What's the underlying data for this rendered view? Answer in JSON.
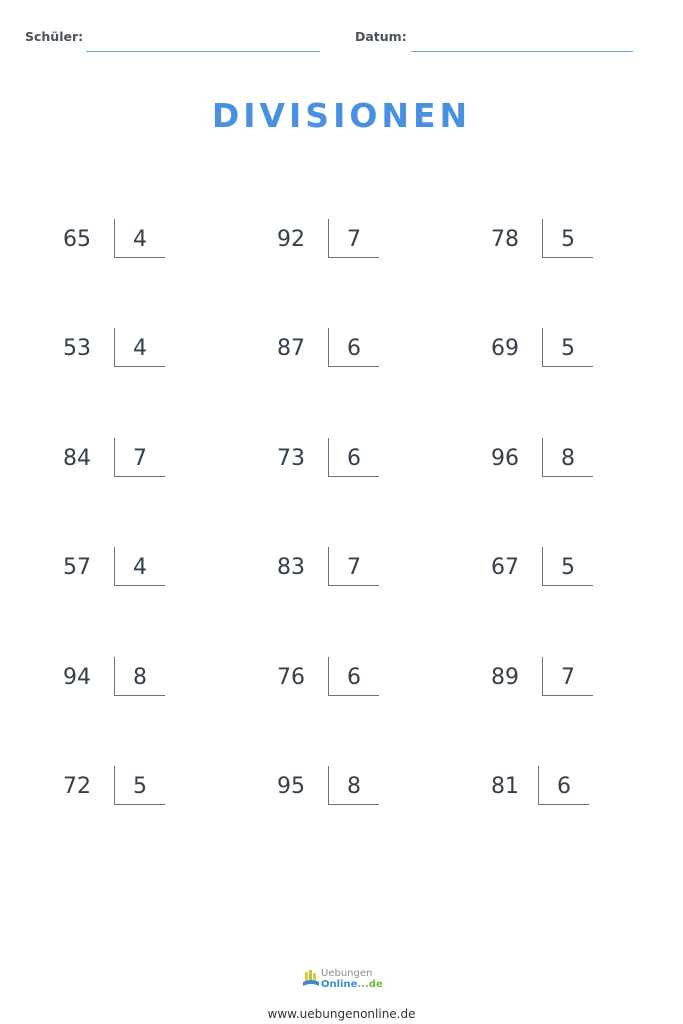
{
  "header": {
    "student_label": "Schüler:",
    "date_label": "Datum:"
  },
  "title": "DIVISIONEN",
  "problems": [
    [
      {
        "dividend": "65",
        "divisor": "4"
      },
      {
        "dividend": "92",
        "divisor": "7"
      },
      {
        "dividend": "78",
        "divisor": "5"
      }
    ],
    [
      {
        "dividend": "53",
        "divisor": "4"
      },
      {
        "dividend": "87",
        "divisor": "6"
      },
      {
        "dividend": "69",
        "divisor": "5"
      }
    ],
    [
      {
        "dividend": "84",
        "divisor": "7"
      },
      {
        "dividend": "73",
        "divisor": "6"
      },
      {
        "dividend": "96",
        "divisor": "8"
      }
    ],
    [
      {
        "dividend": "57",
        "divisor": "4"
      },
      {
        "dividend": "83",
        "divisor": "7"
      },
      {
        "dividend": "67",
        "divisor": "5"
      }
    ],
    [
      {
        "dividend": "94",
        "divisor": "8"
      },
      {
        "dividend": "76",
        "divisor": "6"
      },
      {
        "dividend": "89",
        "divisor": "7"
      }
    ],
    [
      {
        "dividend": "72",
        "divisor": "5"
      },
      {
        "dividend": "95",
        "divisor": "8"
      },
      {
        "dividend": "81",
        "divisor": "6"
      }
    ]
  ],
  "footer": {
    "logo_top": "Uebungen",
    "logo_bottom": "Online",
    "logo_suffix": "...de",
    "url": "www.uebungenonline.de"
  },
  "colors": {
    "accent": "#4a90e2",
    "line": "#6aa8ef"
  }
}
